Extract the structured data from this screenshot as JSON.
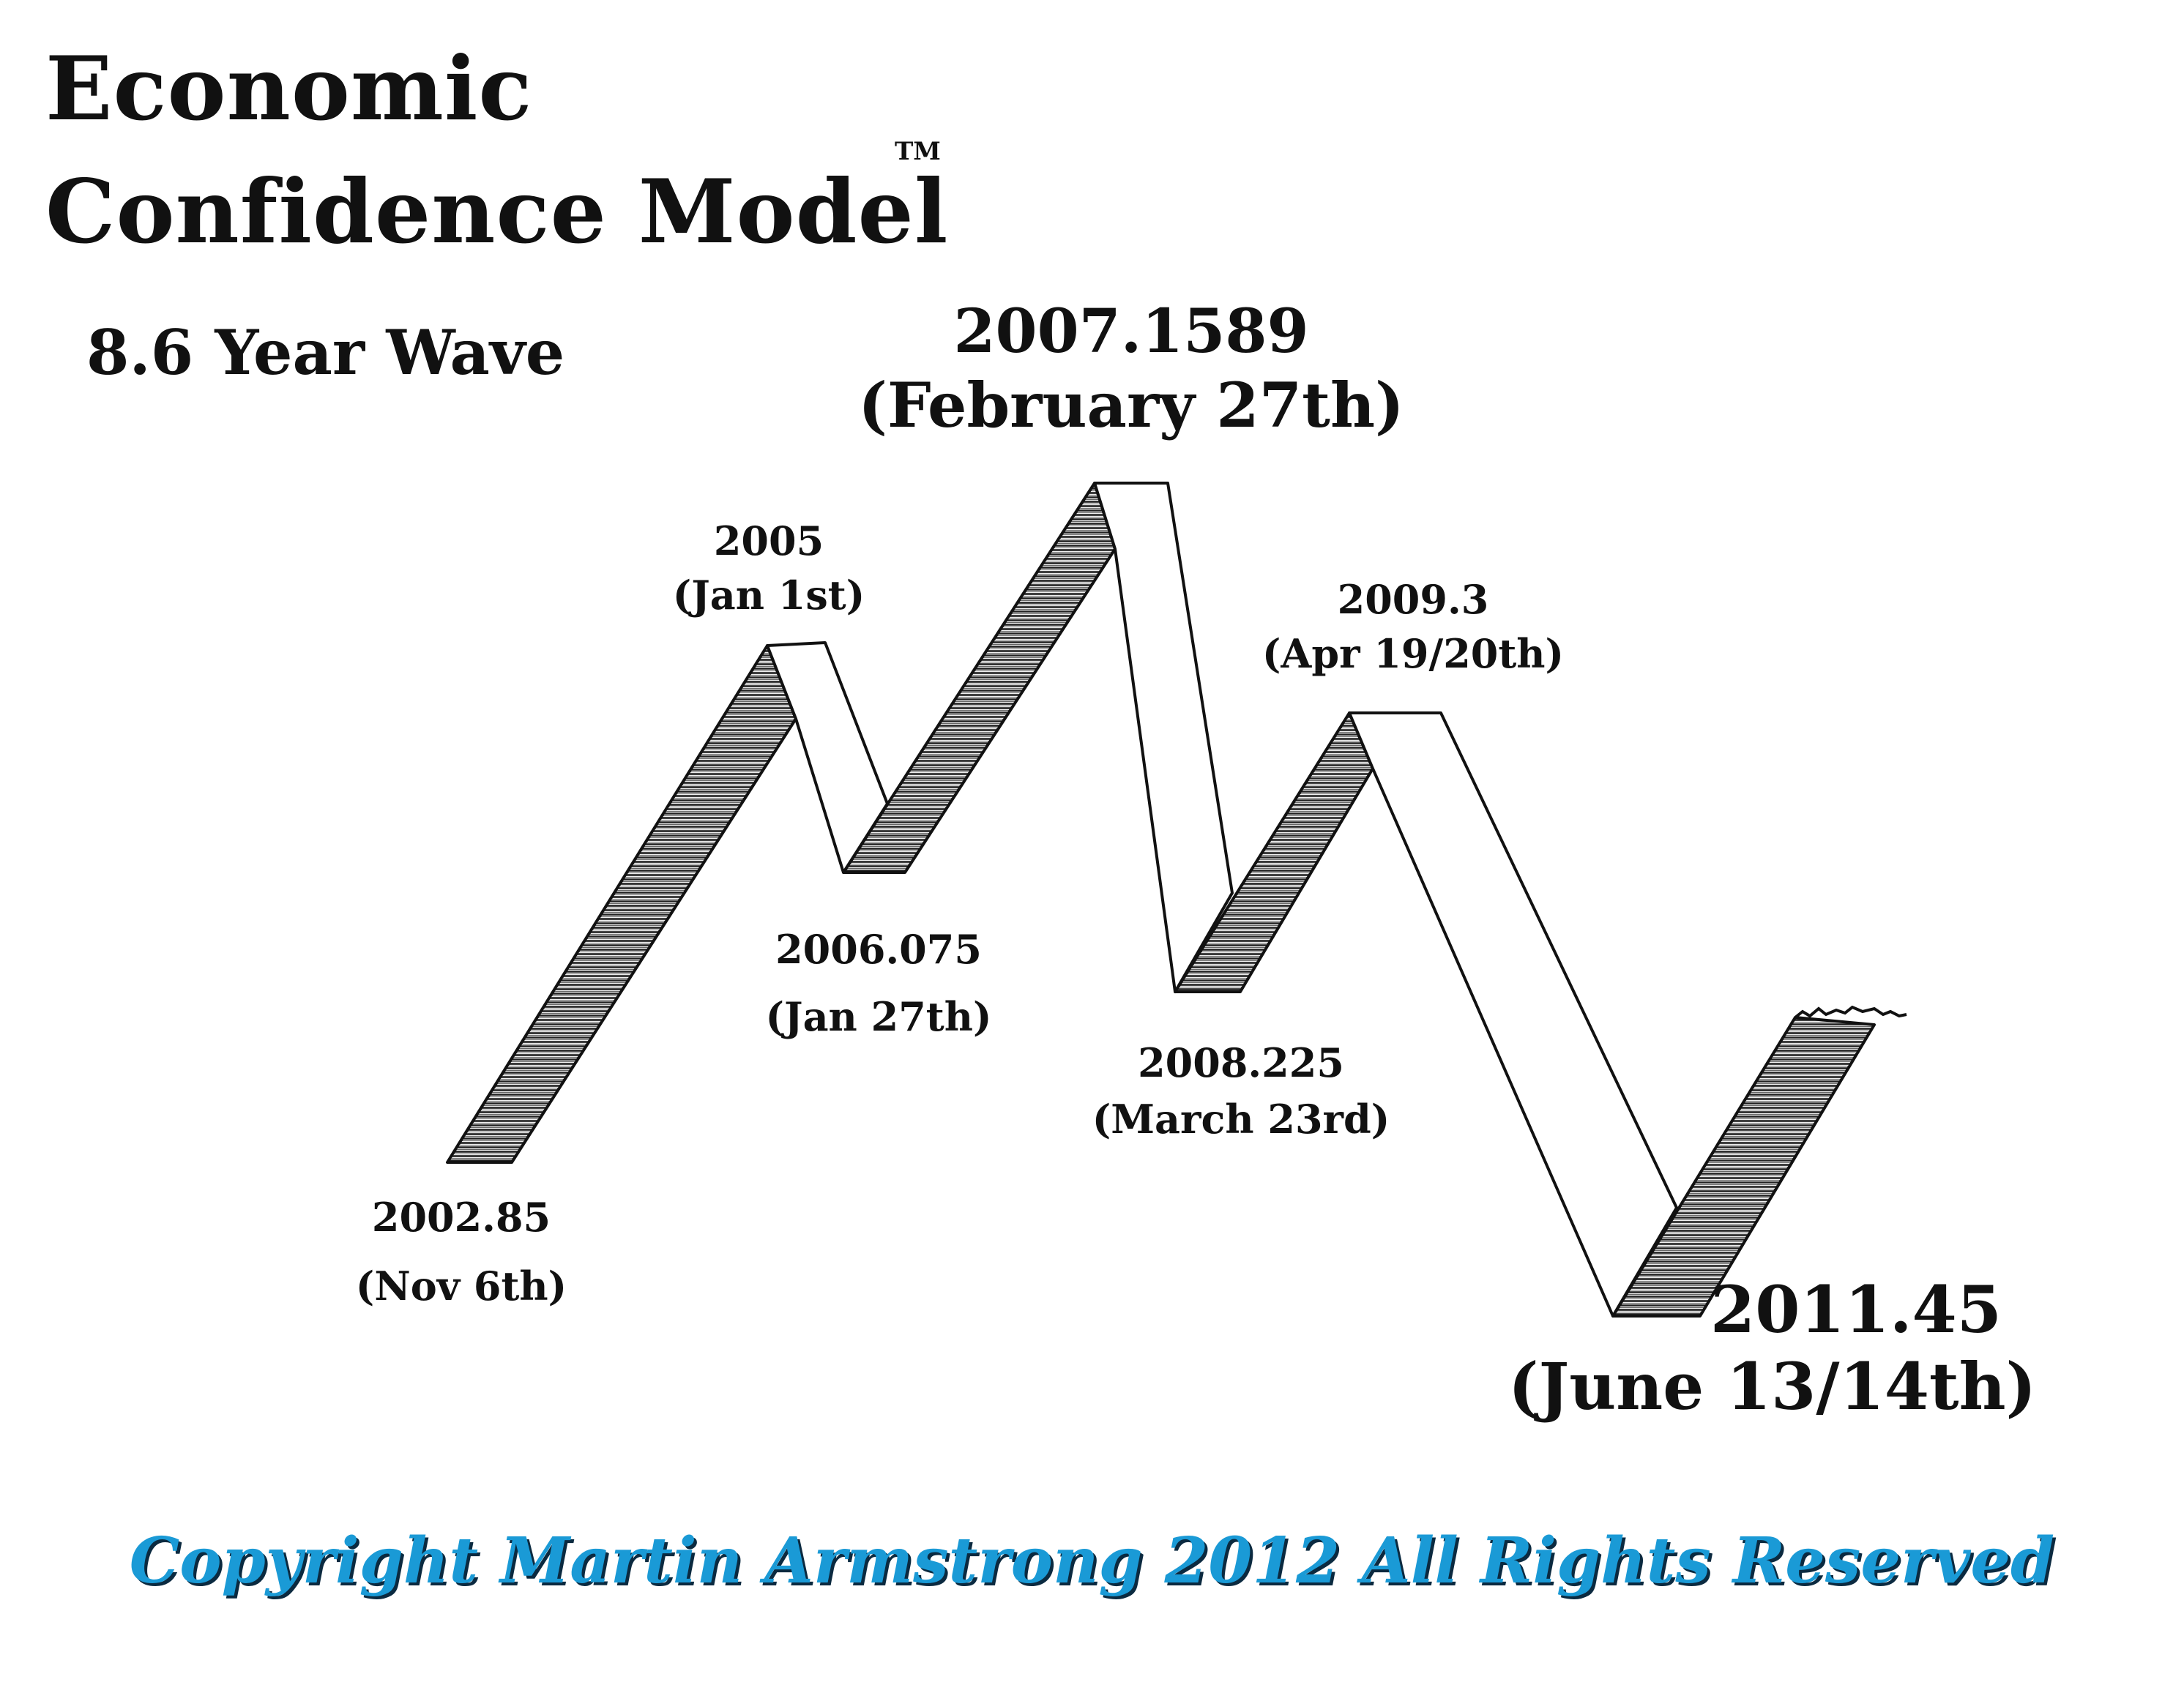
{
  "title": {
    "line1": "Economic",
    "line2": "Confidence Model",
    "trademark": "TM"
  },
  "subtitle": "8.6 Year Wave",
  "turning_points": [
    {
      "date": "2002.85",
      "label": "(Nov 6th)"
    },
    {
      "date": "2005",
      "label": "(Jan 1st)"
    },
    {
      "date": "2006.075",
      "label": "(Jan 27th)"
    },
    {
      "date": "2007.1589",
      "label": "(February 27th)"
    },
    {
      "date": "2008.225",
      "label": "(March 23rd)"
    },
    {
      "date": "2009.3",
      "label": "(Apr 19/20th)"
    },
    {
      "date": "2011.45",
      "label": "(June 13/14th)"
    }
  ],
  "copyright": "Copyright Martin Armstrong 2012 All Rights Reserved",
  "colors": {
    "copyright": "#1a9ad6",
    "ribbon_line": "#111111"
  }
}
